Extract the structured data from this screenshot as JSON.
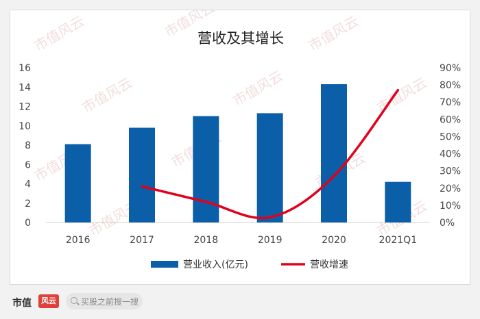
{
  "chart_data": {
    "type": "bar+line",
    "title": "营收及其增长",
    "categories": [
      "2016",
      "2017",
      "2018",
      "2019",
      "2020",
      "2021Q1"
    ],
    "series": [
      {
        "name": "营业收入(亿元)",
        "type": "bar",
        "axis": "left",
        "color": "#0b5ea8",
        "values": [
          8.1,
          9.8,
          11.0,
          11.3,
          14.3,
          4.2
        ]
      },
      {
        "name": "营收增速",
        "type": "line",
        "axis": "right",
        "color": "#e3001b",
        "values": [
          null,
          0.21,
          0.12,
          0.03,
          0.27,
          0.77
        ]
      }
    ],
    "y_left": {
      "min": 0,
      "max": 16,
      "step": 2,
      "ticks": [
        "0",
        "2",
        "4",
        "6",
        "8",
        "10",
        "12",
        "14",
        "16"
      ]
    },
    "y_right": {
      "min": 0,
      "max": 0.9,
      "step": 0.1,
      "ticks": [
        "0%",
        "10%",
        "20%",
        "30%",
        "40%",
        "50%",
        "60%",
        "70%",
        "80%",
        "90%"
      ]
    },
    "legend_position": "bottom",
    "grid": false,
    "watermark": "市值风云"
  },
  "footer": {
    "brand": "市值",
    "brand_logo": "风云",
    "search_placeholder": "买股之前搜一搜",
    "search_icon": "search-icon"
  }
}
